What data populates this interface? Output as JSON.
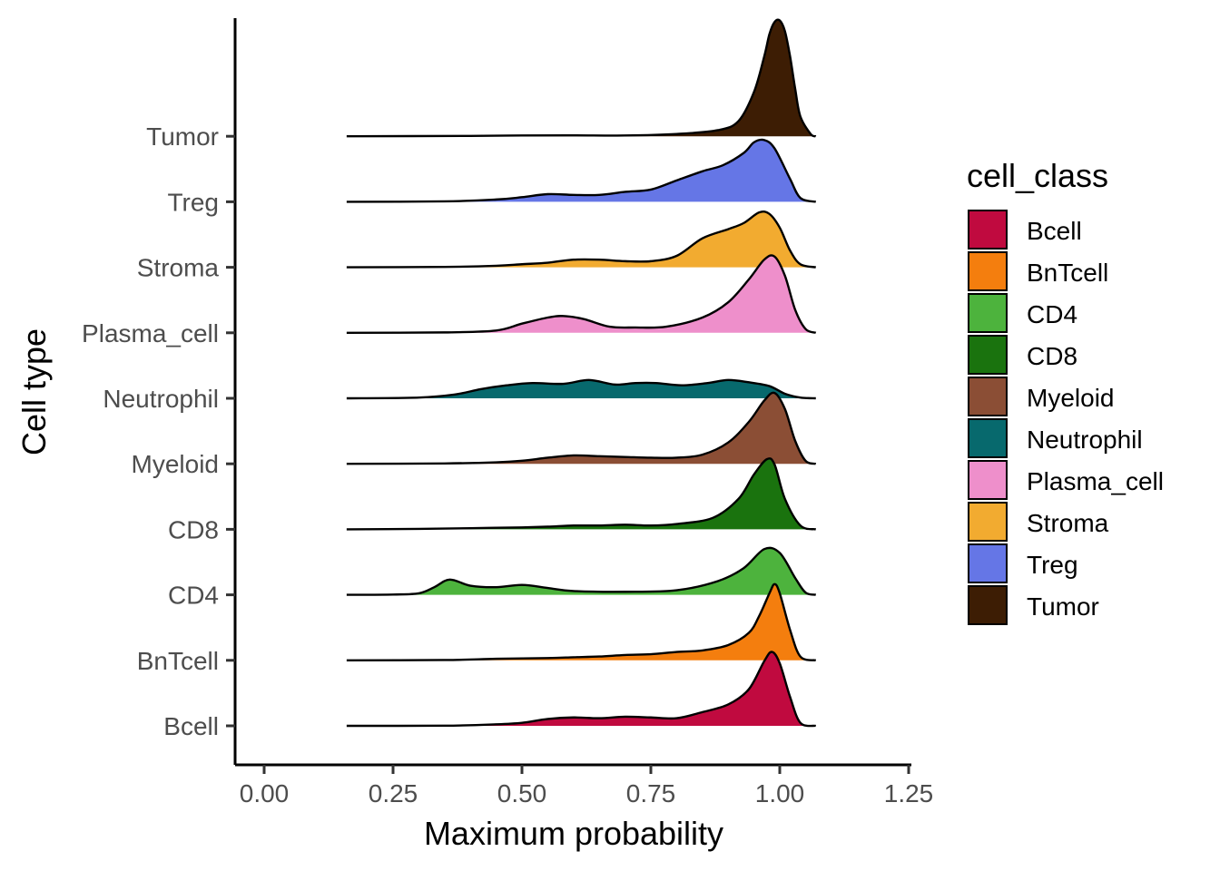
{
  "chart_data": {
    "type": "ridgeline",
    "xlabel": "Maximum probability",
    "ylabel": "Cell type",
    "xlim": [
      -0.06,
      1.25
    ],
    "x_ticks": [
      "0.00",
      "0.25",
      "0.50",
      "0.75",
      "1.00",
      "1.25"
    ],
    "x_tick_values": [
      0,
      0.25,
      0.5,
      0.75,
      1.0,
      1.25
    ],
    "categories": [
      "Bcell",
      "BnTcell",
      "CD4",
      "CD8",
      "Myeloid",
      "Neutrophil",
      "Plasma_cell",
      "Stroma",
      "Treg",
      "Tumor"
    ],
    "grid": false,
    "legend": {
      "title": "cell_class",
      "position": "right",
      "items": [
        "Bcell",
        "BnTcell",
        "CD4",
        "CD8",
        "Myeloid",
        "Neutrophil",
        "Plasma_cell",
        "Stroma",
        "Treg",
        "Tumor"
      ]
    },
    "colors": {
      "Bcell": "#C00A3F",
      "BnTcell": "#F47E0E",
      "CD4": "#4DB33D",
      "CD8": "#1A730E",
      "Myeloid": "#8B4E35",
      "Neutrophil": "#07696D",
      "Plasma_cell": "#EE8FCB",
      "Stroma": "#F2AB30",
      "Treg": "#6576E6",
      "Tumor": "#3D1D04"
    },
    "series": [
      {
        "name": "Bcell",
        "x": [
          0.16,
          0.35,
          0.45,
          0.5,
          0.55,
          0.6,
          0.65,
          0.7,
          0.75,
          0.8,
          0.85,
          0.9,
          0.94,
          0.97,
          0.985,
          1.0,
          1.02,
          1.04,
          1.07
        ],
        "density": [
          0,
          0.002,
          0.02,
          0.04,
          0.09,
          0.11,
          0.1,
          0.12,
          0.11,
          0.1,
          0.18,
          0.28,
          0.48,
          0.85,
          0.97,
          0.82,
          0.38,
          0.04,
          0
        ]
      },
      {
        "name": "BnTcell",
        "x": [
          0.16,
          0.35,
          0.45,
          0.55,
          0.6,
          0.65,
          0.7,
          0.75,
          0.8,
          0.85,
          0.9,
          0.94,
          0.96,
          0.98,
          0.99,
          1.0,
          1.02,
          1.04,
          1.07
        ],
        "density": [
          0,
          0.004,
          0.02,
          0.03,
          0.04,
          0.05,
          0.07,
          0.08,
          0.11,
          0.13,
          0.2,
          0.36,
          0.58,
          0.88,
          1.0,
          0.88,
          0.4,
          0.05,
          0
        ]
      },
      {
        "name": "CD4",
        "x": [
          0.16,
          0.25,
          0.3,
          0.33,
          0.36,
          0.4,
          0.45,
          0.5,
          0.55,
          0.6,
          0.7,
          0.8,
          0.88,
          0.93,
          0.97,
          1.0,
          1.03,
          1.05,
          1.07
        ],
        "density": [
          0,
          0.004,
          0.02,
          0.1,
          0.2,
          0.12,
          0.1,
          0.13,
          0.09,
          0.05,
          0.04,
          0.06,
          0.18,
          0.35,
          0.6,
          0.55,
          0.22,
          0.03,
          0
        ]
      },
      {
        "name": "CD8",
        "x": [
          0.16,
          0.3,
          0.4,
          0.45,
          0.5,
          0.55,
          0.6,
          0.65,
          0.7,
          0.75,
          0.8,
          0.87,
          0.92,
          0.95,
          0.975,
          0.99,
          1.01,
          1.04,
          1.07
        ],
        "density": [
          0,
          0.005,
          0.015,
          0.02,
          0.025,
          0.035,
          0.05,
          0.05,
          0.06,
          0.05,
          0.07,
          0.15,
          0.4,
          0.72,
          0.92,
          0.85,
          0.4,
          0.05,
          0
        ]
      },
      {
        "name": "Myeloid",
        "x": [
          0.16,
          0.35,
          0.45,
          0.5,
          0.55,
          0.6,
          0.65,
          0.7,
          0.75,
          0.8,
          0.85,
          0.9,
          0.94,
          0.97,
          0.99,
          1.01,
          1.03,
          1.05,
          1.07
        ],
        "density": [
          0,
          0.005,
          0.02,
          0.04,
          0.08,
          0.11,
          0.1,
          0.09,
          0.08,
          0.08,
          0.12,
          0.28,
          0.55,
          0.83,
          0.93,
          0.72,
          0.3,
          0.04,
          0
        ]
      },
      {
        "name": "Neutrophil",
        "x": [
          0.16,
          0.3,
          0.37,
          0.42,
          0.47,
          0.52,
          0.58,
          0.63,
          0.68,
          0.72,
          0.76,
          0.81,
          0.86,
          0.9,
          0.94,
          0.98,
          1.01,
          1.04,
          1.07
        ],
        "density": [
          0,
          0.01,
          0.05,
          0.12,
          0.17,
          0.2,
          0.19,
          0.24,
          0.18,
          0.2,
          0.2,
          0.17,
          0.2,
          0.24,
          0.21,
          0.16,
          0.06,
          0.01,
          0
        ]
      },
      {
        "name": "Plasma_cell",
        "x": [
          0.16,
          0.35,
          0.45,
          0.5,
          0.55,
          0.58,
          0.62,
          0.67,
          0.72,
          0.78,
          0.85,
          0.9,
          0.94,
          0.97,
          0.99,
          1.01,
          1.03,
          1.05,
          1.07
        ],
        "density": [
          0,
          0.005,
          0.03,
          0.12,
          0.2,
          0.22,
          0.18,
          0.08,
          0.07,
          0.08,
          0.2,
          0.4,
          0.7,
          0.96,
          1.0,
          0.75,
          0.3,
          0.05,
          0
        ]
      },
      {
        "name": "Stroma",
        "x": [
          0.16,
          0.35,
          0.45,
          0.5,
          0.55,
          0.6,
          0.65,
          0.7,
          0.75,
          0.8,
          0.85,
          0.9,
          0.93,
          0.96,
          0.98,
          1.0,
          1.02,
          1.04,
          1.07
        ],
        "density": [
          0,
          0.005,
          0.02,
          0.04,
          0.06,
          0.1,
          0.1,
          0.08,
          0.08,
          0.15,
          0.38,
          0.5,
          0.58,
          0.72,
          0.7,
          0.52,
          0.22,
          0.04,
          0
        ]
      },
      {
        "name": "Treg",
        "x": [
          0.16,
          0.35,
          0.45,
          0.5,
          0.55,
          0.6,
          0.65,
          0.7,
          0.75,
          0.8,
          0.85,
          0.89,
          0.93,
          0.95,
          0.97,
          0.99,
          1.02,
          1.04,
          1.07
        ],
        "density": [
          0,
          0.005,
          0.03,
          0.06,
          0.1,
          0.09,
          0.09,
          0.13,
          0.16,
          0.28,
          0.4,
          0.48,
          0.64,
          0.78,
          0.81,
          0.7,
          0.3,
          0.05,
          0
        ]
      },
      {
        "name": "Tumor",
        "x": [
          0.16,
          0.4,
          0.5,
          0.6,
          0.7,
          0.8,
          0.88,
          0.92,
          0.95,
          0.97,
          0.98,
          0.99,
          1.0,
          1.01,
          1.02,
          1.03,
          1.04,
          1.06,
          1.07
        ],
        "density": [
          0,
          0.005,
          0.01,
          0.012,
          0.01,
          0.03,
          0.08,
          0.2,
          0.58,
          1.05,
          1.34,
          1.5,
          1.52,
          1.38,
          1.05,
          0.62,
          0.26,
          0.03,
          0
        ]
      }
    ]
  }
}
